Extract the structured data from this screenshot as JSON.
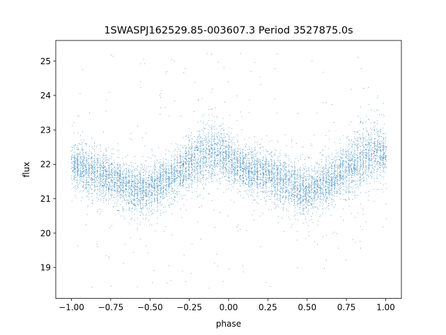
{
  "chart_data": {
    "type": "scatter",
    "title": "1SWASPJ162529.85-003607.3 Period 3527875.0s",
    "xlabel": "phase",
    "ylabel": "flux",
    "xlim": [
      -1.1,
      1.1
    ],
    "ylim": [
      18.1,
      25.6
    ],
    "x_ticks": [
      -1.0,
      -0.75,
      -0.5,
      -0.25,
      0.0,
      0.25,
      0.5,
      0.75,
      1.0
    ],
    "x_tick_labels": [
      "−1.00",
      "−0.75",
      "−0.50",
      "−0.25",
      "0.00",
      "0.25",
      "0.50",
      "0.75",
      "1.00"
    ],
    "y_ticks": [
      19,
      20,
      21,
      22,
      23,
      24,
      25
    ],
    "y_tick_labels": [
      "19",
      "20",
      "21",
      "22",
      "23",
      "24",
      "25"
    ],
    "grid": false,
    "legend": "none",
    "marker_color": "#1f77b4",
    "series": [
      {
        "description_of_trend": "phase-folded light curve, mirrored about phase 0",
        "x": [
          -1.0,
          -0.95,
          -0.9,
          -0.85,
          -0.8,
          -0.75,
          -0.7,
          -0.65,
          -0.6,
          -0.55,
          -0.5,
          -0.45,
          -0.4,
          -0.35,
          -0.3,
          -0.25,
          -0.2,
          -0.15,
          -0.1,
          -0.05,
          0.0,
          0.05,
          0.1,
          0.15,
          0.2,
          0.25,
          0.3,
          0.35,
          0.4,
          0.45,
          0.5,
          0.55,
          0.6,
          0.65,
          0.7,
          0.75,
          0.8,
          0.85,
          0.9,
          0.95,
          1.0
        ],
        "y_center": [
          22.0,
          21.9,
          21.8,
          21.75,
          21.7,
          21.6,
          21.5,
          21.4,
          21.3,
          21.25,
          21.3,
          21.4,
          21.55,
          21.7,
          21.85,
          22.0,
          22.15,
          22.3,
          22.4,
          22.35,
          22.2,
          22.0,
          21.9,
          21.8,
          21.75,
          21.7,
          21.6,
          21.5,
          21.4,
          21.3,
          21.25,
          21.3,
          21.4,
          21.55,
          21.7,
          21.85,
          22.0,
          22.15,
          22.3,
          22.4,
          22.2
        ],
        "y_spread": [
          0.55,
          0.6,
          0.6,
          0.6,
          0.55,
          0.55,
          0.6,
          0.6,
          0.65,
          0.65,
          0.6,
          0.55,
          0.55,
          0.55,
          0.6,
          0.65,
          0.7,
          0.75,
          0.75,
          0.7,
          0.65,
          0.6,
          0.6,
          0.6,
          0.55,
          0.55,
          0.6,
          0.6,
          0.65,
          0.65,
          0.6,
          0.55,
          0.55,
          0.55,
          0.6,
          0.65,
          0.7,
          0.75,
          0.75,
          0.7,
          0.65
        ]
      }
    ]
  }
}
